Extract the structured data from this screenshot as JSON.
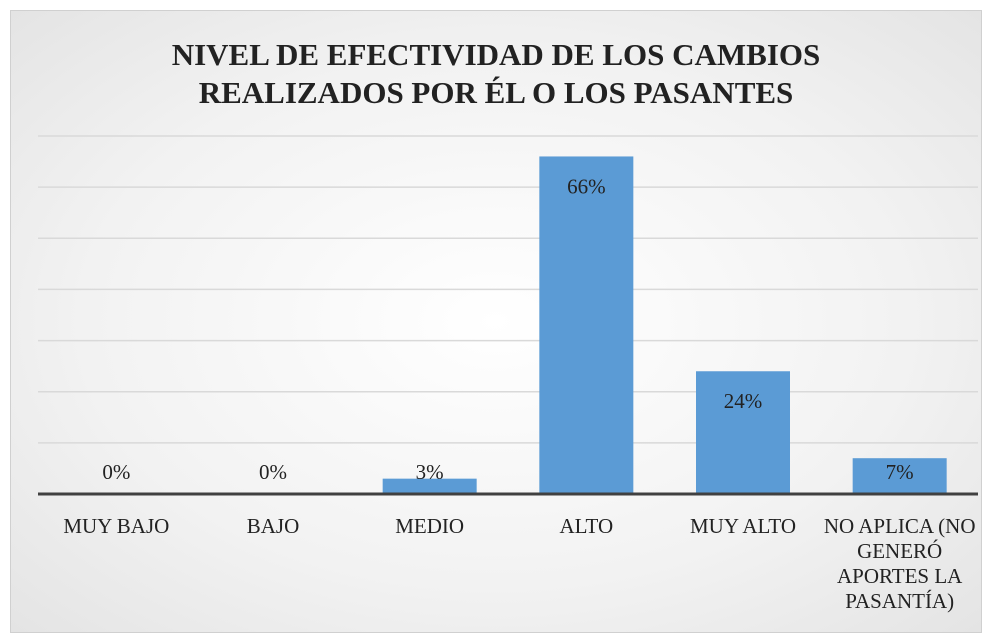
{
  "chart_data": {
    "type": "bar",
    "title": "NIVEL DE EFECTIVIDAD DE LOS CAMBIOS REALIZADOS POR ÉL O LOS PASANTES",
    "categories": [
      "MUY BAJO",
      "BAJO",
      "MEDIO",
      "ALTO",
      "MUY ALTO",
      "NO APLICA (NO GENERÓ APORTES LA PASANTÍA)"
    ],
    "values": [
      0,
      0,
      3,
      66,
      24,
      7
    ],
    "value_labels": [
      "0%",
      "0%",
      "3%",
      "66%",
      "24%",
      "7%"
    ],
    "color": "#5b9bd5",
    "ylim": [
      0,
      70
    ],
    "yticks": [
      0,
      10,
      20,
      30,
      40,
      50,
      60,
      70
    ],
    "grid": true
  }
}
